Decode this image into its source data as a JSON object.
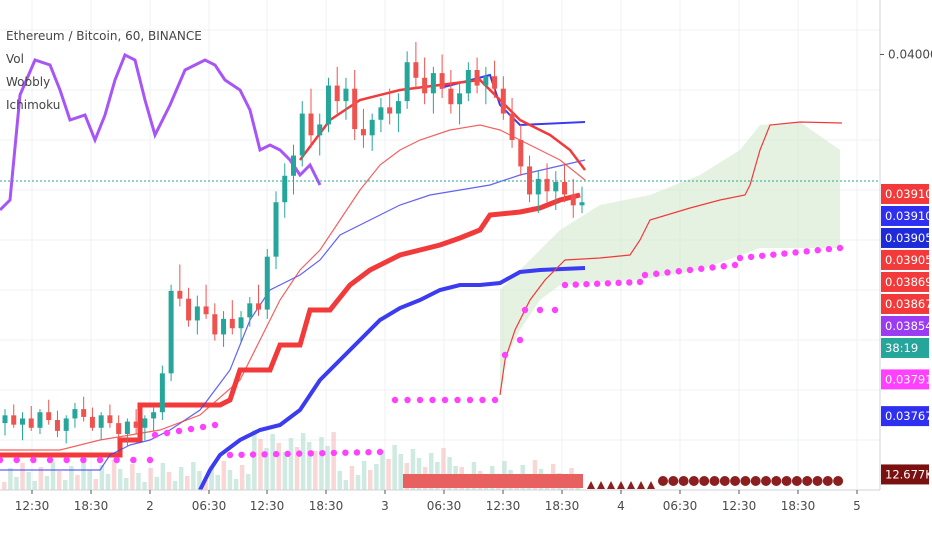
{
  "legend": {
    "title": "Ethereum / Bitcoin, 60, BINANCE",
    "items": [
      "Vol",
      "Wobbly",
      "Ichimoku"
    ]
  },
  "colors": {
    "background": "#ffffff",
    "grid": "#eef1f5",
    "up_candle": "#26a69a",
    "down_candle": "#ef5350",
    "ichimoku_red": "#f23a3a",
    "ichimoku_blue": "#3b3bf2",
    "purple_line": "#a855f7",
    "magenta_dots": "#ff40ff",
    "cloud_fill": "#cfe8c9",
    "last_price_line": "#26a69a",
    "dark_red_dots": "#8b1e1e"
  },
  "chart_data": {
    "type": "candlestick",
    "title": "Ethereum / Bitcoin, 60, BINANCE",
    "x_tick_labels": [
      "12:30",
      "18:30",
      "2",
      "06:30",
      "12:30",
      "18:30",
      "3",
      "06:30",
      "12:30",
      "18:30",
      "4",
      "06:30",
      "12:30",
      "18:30",
      "5"
    ],
    "y_tick_labels": [
      "0.040000"
    ],
    "y_range": [
      0.0372,
      0.04035
    ],
    "last_price": 0.039053,
    "countdown": "38:19",
    "price_tags": [
      {
        "label": "0.039103",
        "value": 0.039103,
        "color": "#f23a3a"
      },
      {
        "label": "0.039103",
        "value": 0.039103,
        "color": "#2f2ff2"
      },
      {
        "label": "0.039053",
        "value": 0.039053,
        "color": "#1f2bd9"
      },
      {
        "label": "0.039050",
        "value": 0.03905,
        "color": "#f23a3a"
      },
      {
        "label": "0.038693",
        "value": 0.038693,
        "color": "#f23a3a"
      },
      {
        "label": "0.038673",
        "value": 0.038673,
        "color": "#f23a3a"
      },
      {
        "label": "0.038548",
        "value": 0.038548,
        "color": "#9b3bf2"
      },
      {
        "label": "38:19",
        "value": 0.03828,
        "color": "#26a69a"
      },
      {
        "label": "0.037911",
        "value": 0.037911,
        "color": "#ff40ff"
      },
      {
        "label": "0.037675",
        "value": 0.037675,
        "color": "#2f2ff2"
      },
      {
        "label": "12.677K",
        "value": 0.0373,
        "color": "#7a1010"
      }
    ],
    "candles": [
      [
        0.03763,
        0.03772,
        0.03755,
        0.03768
      ],
      [
        0.03768,
        0.03775,
        0.0376,
        0.03762
      ],
      [
        0.03762,
        0.0377,
        0.03752,
        0.03766
      ],
      [
        0.03766,
        0.03774,
        0.03758,
        0.0376
      ],
      [
        0.0376,
        0.03772,
        0.03756,
        0.0377
      ],
      [
        0.0377,
        0.03778,
        0.03762,
        0.03765
      ],
      [
        0.03765,
        0.03771,
        0.03754,
        0.03758
      ],
      [
        0.03758,
        0.03768,
        0.0375,
        0.03766
      ],
      [
        0.03766,
        0.03776,
        0.0376,
        0.03772
      ],
      [
        0.03772,
        0.0378,
        0.03764,
        0.03767
      ],
      [
        0.03767,
        0.03773,
        0.03758,
        0.0376
      ],
      [
        0.0376,
        0.0377,
        0.03752,
        0.03768
      ],
      [
        0.03768,
        0.03775,
        0.0376,
        0.03763
      ],
      [
        0.03763,
        0.03768,
        0.03753,
        0.03756
      ],
      [
        0.03756,
        0.03766,
        0.03748,
        0.03764
      ],
      [
        0.03764,
        0.03772,
        0.03756,
        0.0376
      ],
      [
        0.0376,
        0.03768,
        0.03752,
        0.03766
      ],
      [
        0.03766,
        0.03774,
        0.03758,
        0.0377
      ],
      [
        0.0377,
        0.038,
        0.03765,
        0.03795
      ],
      [
        0.03795,
        0.03852,
        0.0379,
        0.03848
      ],
      [
        0.03848,
        0.03865,
        0.03838,
        0.03843
      ],
      [
        0.03843,
        0.0385,
        0.03825,
        0.03829
      ],
      [
        0.03829,
        0.03845,
        0.0382,
        0.03838
      ],
      [
        0.03838,
        0.03852,
        0.0383,
        0.03833
      ],
      [
        0.03833,
        0.0384,
        0.03816,
        0.0382
      ],
      [
        0.0382,
        0.03835,
        0.03812,
        0.0383
      ],
      [
        0.0383,
        0.03842,
        0.0382,
        0.03824
      ],
      [
        0.03824,
        0.03835,
        0.03815,
        0.03831
      ],
      [
        0.03831,
        0.03844,
        0.03825,
        0.0384
      ],
      [
        0.0384,
        0.03852,
        0.03832,
        0.03836
      ],
      [
        0.03836,
        0.03875,
        0.0383,
        0.0387
      ],
      [
        0.0387,
        0.03912,
        0.03862,
        0.03905
      ],
      [
        0.03905,
        0.0393,
        0.03895,
        0.03922
      ],
      [
        0.03922,
        0.03942,
        0.0391,
        0.03935
      ],
      [
        0.03935,
        0.0397,
        0.03928,
        0.03962
      ],
      [
        0.03962,
        0.03978,
        0.0394,
        0.03948
      ],
      [
        0.03948,
        0.03962,
        0.03935,
        0.03955
      ],
      [
        0.03955,
        0.03985,
        0.0395,
        0.0398
      ],
      [
        0.0398,
        0.03992,
        0.03962,
        0.0397
      ],
      [
        0.0397,
        0.03985,
        0.03958,
        0.03978
      ],
      [
        0.03978,
        0.0399,
        0.03945,
        0.03952
      ],
      [
        0.03952,
        0.03965,
        0.0394,
        0.03948
      ],
      [
        0.03948,
        0.03962,
        0.03938,
        0.03958
      ],
      [
        0.03958,
        0.03972,
        0.0395,
        0.03966
      ],
      [
        0.03966,
        0.03978,
        0.03955,
        0.03962
      ],
      [
        0.03962,
        0.03975,
        0.0395,
        0.0397
      ],
      [
        0.0397,
        0.04002,
        0.03965,
        0.03995
      ],
      [
        0.03995,
        0.04008,
        0.03978,
        0.03985
      ],
      [
        0.03985,
        0.03998,
        0.03968,
        0.03975
      ],
      [
        0.03975,
        0.03992,
        0.03962,
        0.03988
      ],
      [
        0.03988,
        0.04,
        0.03972,
        0.03978
      ],
      [
        0.03978,
        0.0399,
        0.03962,
        0.03968
      ],
      [
        0.03968,
        0.03982,
        0.03955,
        0.03975
      ],
      [
        0.03975,
        0.03995,
        0.0397,
        0.0399
      ],
      [
        0.0399,
        0.03998,
        0.03975,
        0.0398
      ],
      [
        0.0398,
        0.03992,
        0.03968,
        0.03986
      ],
      [
        0.03986,
        0.03996,
        0.03972,
        0.03978
      ],
      [
        0.03978,
        0.03986,
        0.03958,
        0.03962
      ],
      [
        0.03962,
        0.03972,
        0.0394,
        0.03945
      ],
      [
        0.03945,
        0.03955,
        0.03922,
        0.03928
      ],
      [
        0.03928,
        0.03935,
        0.03905,
        0.0391
      ],
      [
        0.0391,
        0.03925,
        0.03898,
        0.0392
      ],
      [
        0.0392,
        0.0393,
        0.03905,
        0.03912
      ],
      [
        0.03912,
        0.03925,
        0.039,
        0.03918
      ],
      [
        0.03918,
        0.0393,
        0.03905,
        0.0391
      ],
      [
        0.0391,
        0.0392,
        0.03895,
        0.03903
      ],
      [
        0.03903,
        0.03915,
        0.03898,
        0.03905
      ]
    ],
    "series": [
      {
        "name": "Vol",
        "type": "area"
      },
      {
        "name": "Wobbly",
        "type": "line"
      },
      {
        "name": "Ichimoku",
        "type": "line"
      }
    ]
  }
}
